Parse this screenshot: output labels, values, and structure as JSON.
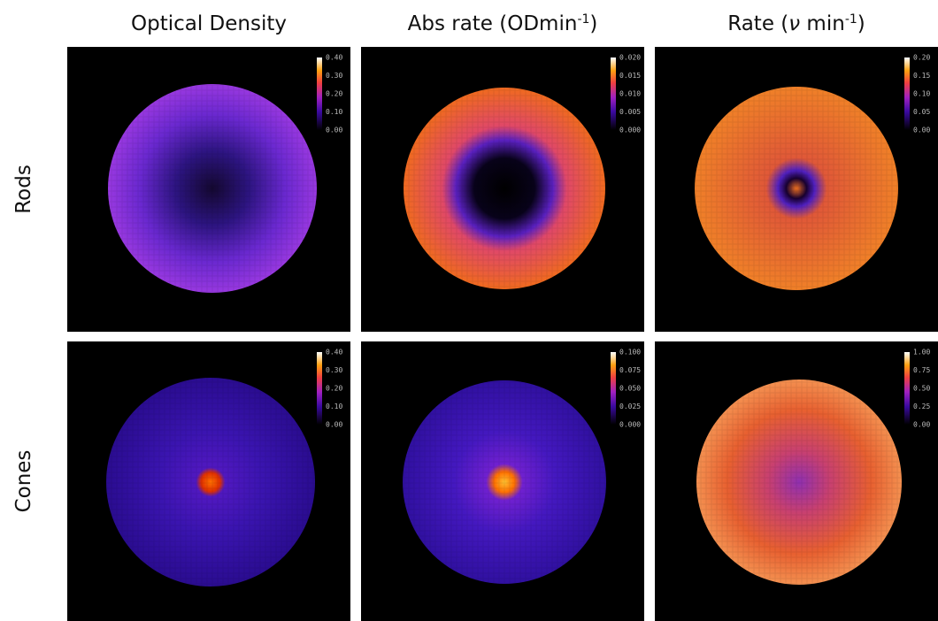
{
  "columns": [
    {
      "title": [
        {
          "text": "Optical Density",
          "style": "normal"
        }
      ]
    },
    {
      "title": [
        {
          "text": "Abs rate (ODmin",
          "style": "normal"
        },
        {
          "text": "-1",
          "style": "sup"
        },
        {
          "text": ")",
          "style": "normal"
        }
      ]
    },
    {
      "title": [
        {
          "text": "Rate (",
          "style": "normal"
        },
        {
          "text": "ν",
          "style": "italic"
        },
        {
          "text": " min",
          "style": "normal"
        },
        {
          "text": "-1",
          "style": "sup"
        },
        {
          "text": ")",
          "style": "normal"
        }
      ]
    }
  ],
  "rows": [
    {
      "label": "Rods",
      "panels": [
        {
          "colorbar_ticks": [
            "0.40",
            "0.30",
            "0.20",
            "0.10",
            "0.00"
          ]
        },
        {
          "colorbar_ticks": [
            "0.020",
            "0.015",
            "0.010",
            "0.005",
            "0.000"
          ]
        },
        {
          "colorbar_ticks": [
            "0.20",
            "0.15",
            "0.10",
            "0.05",
            "0.00"
          ]
        }
      ]
    },
    {
      "label": "Cones",
      "panels": [
        {
          "colorbar_ticks": [
            "0.40",
            "0.30",
            "0.20",
            "0.10",
            "0.00"
          ]
        },
        {
          "colorbar_ticks": [
            "0.100",
            "0.075",
            "0.050",
            "0.025",
            "0.000"
          ]
        },
        {
          "colorbar_ticks": [
            "1.00",
            "0.75",
            "0.50",
            "0.25",
            "0.00"
          ]
        }
      ]
    }
  ]
}
